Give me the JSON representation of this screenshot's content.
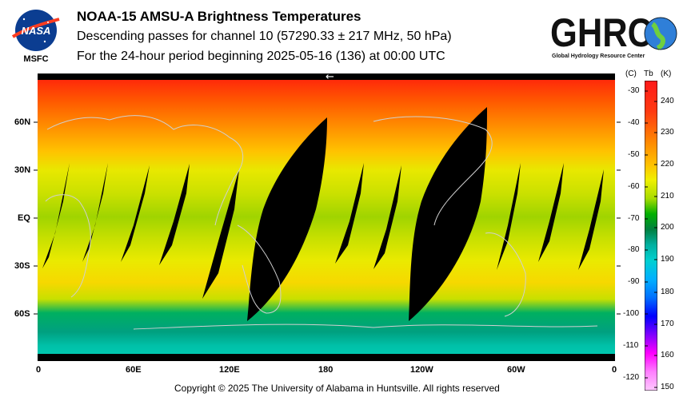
{
  "header": {
    "title": "NOAA-15 AMSU-A Brightness Temperatures",
    "subtitle": "Descending passes for channel 10 (57290.33 ± 217 MHz, 50 hPa)",
    "period": "For the 24-hour period beginning 2025-05-16 (136) at 00:00 UTC"
  },
  "logos": {
    "nasa_text": "NASA",
    "msfc_text": "MSFC",
    "ghrc_text": "GHRC",
    "ghrc_subtext": "Global Hydrology Resource Center"
  },
  "map": {
    "lat_labels": [
      "60N",
      "30N",
      "EQ",
      "30S",
      "60S"
    ],
    "lon_labels": [
      "0",
      "60E",
      "120E",
      "180",
      "120W",
      "60W",
      "0"
    ],
    "arrow": "←"
  },
  "colorbar": {
    "header_c": "(C)",
    "header_tb": "Tb",
    "header_k": "(K)",
    "celsius_ticks": [
      "-30",
      "-40",
      "-50",
      "-60",
      "-70",
      "-80",
      "-90",
      "-100",
      "-110",
      "-120"
    ],
    "kelvin_ticks": [
      "240",
      "230",
      "220",
      "210",
      "200",
      "190",
      "180",
      "170",
      "160",
      "150"
    ],
    "colors": [
      "#ff1a1a",
      "#ff6a00",
      "#ffb000",
      "#f0f000",
      "#9ad800",
      "#00c000",
      "#008040",
      "#00b0a0",
      "#00c0ff",
      "#0070ff",
      "#0000ff",
      "#8000ff",
      "#ff00ff",
      "#ff80ff",
      "#ffc0ff"
    ]
  },
  "footer": {
    "copyright": "Copyright © 2025 The University of Alabama in Huntsville.  All rights reserved"
  }
}
